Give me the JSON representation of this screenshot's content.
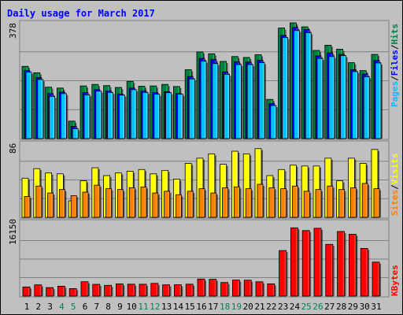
{
  "chart_data": [
    {
      "type": "bar",
      "title": "Daily usage for March 2017",
      "panel": "top",
      "ylabel_parts": [
        "Pages",
        "/",
        "Files",
        "/",
        "Hits"
      ],
      "ylim": [
        0,
        378
      ],
      "y_tick_label": "378",
      "categories": [
        "1",
        "2",
        "3",
        "4",
        "5",
        "6",
        "7",
        "8",
        "9",
        "10",
        "11",
        "12",
        "13",
        "14",
        "15",
        "16",
        "17",
        "18",
        "19",
        "20",
        "21",
        "22",
        "23",
        "24",
        "25",
        "26",
        "27",
        "28",
        "29",
        "30",
        "31"
      ],
      "weekend_days": [
        "4",
        "5",
        "11",
        "12",
        "18",
        "19",
        "25",
        "26"
      ],
      "series": [
        {
          "name": "Hits",
          "values": [
            236,
            215,
            168,
            165,
            57,
            172,
            177,
            173,
            167,
            187,
            171,
            172,
            177,
            170,
            225,
            283,
            277,
            252,
            268,
            265,
            274,
            128,
            361,
            378,
            365,
            288,
            305,
            292,
            248,
            222,
            275
          ]
        },
        {
          "name": "Files",
          "values": [
            222,
            199,
            147,
            152,
            40,
            150,
            160,
            155,
            145,
            165,
            155,
            150,
            153,
            147,
            203,
            262,
            258,
            218,
            251,
            250,
            256,
            114,
            337,
            363,
            356,
            270,
            280,
            275,
            225,
            211,
            255
          ]
        },
        {
          "name": "Pages",
          "values": [
            217,
            193,
            138,
            147,
            32,
            143,
            155,
            151,
            142,
            160,
            151,
            145,
            150,
            145,
            195,
            253,
            245,
            210,
            242,
            242,
            248,
            108,
            330,
            353,
            346,
            262,
            268,
            271,
            219,
            202,
            247
          ]
        }
      ]
    },
    {
      "type": "bar",
      "panel": "middle",
      "ylabel_parts": [
        "Sites",
        "/",
        "Visits"
      ],
      "ylim": [
        0,
        86
      ],
      "y_tick_label": "86",
      "categories": [
        "1",
        "2",
        "3",
        "4",
        "5",
        "6",
        "7",
        "8",
        "9",
        "10",
        "11",
        "12",
        "13",
        "14",
        "15",
        "16",
        "17",
        "18",
        "19",
        "20",
        "21",
        "22",
        "23",
        "24",
        "25",
        "26",
        "27",
        "28",
        "29",
        "30",
        "31"
      ],
      "series": [
        {
          "name": "Visits",
          "values": [
            45,
            56,
            51,
            50,
            19,
            42,
            57,
            48,
            51,
            53,
            55,
            50,
            54,
            44,
            62,
            68,
            73,
            61,
            76,
            73,
            79,
            48,
            55,
            60,
            59,
            59,
            68,
            42,
            68,
            62,
            78
          ]
        },
        {
          "name": "Sites",
          "values": [
            24,
            36,
            28,
            32,
            25,
            29,
            37,
            33,
            32,
            34,
            35,
            28,
            30,
            26,
            30,
            33,
            28,
            34,
            35,
            33,
            38,
            34,
            33,
            36,
            30,
            32,
            36,
            32,
            34,
            39,
            33
          ]
        }
      ]
    },
    {
      "type": "bar",
      "panel": "bottom",
      "ylabel": "KBytes",
      "ylim": [
        0,
        16150
      ],
      "y_tick_label": "16150",
      "categories": [
        "1",
        "2",
        "3",
        "4",
        "5",
        "6",
        "7",
        "8",
        "9",
        "10",
        "11",
        "12",
        "13",
        "14",
        "15",
        "16",
        "17",
        "18",
        "19",
        "20",
        "21",
        "22",
        "23",
        "24",
        "25",
        "26",
        "27",
        "28",
        "29",
        "30",
        "31"
      ],
      "series": [
        {
          "name": "KBytes",
          "values": [
            2000,
            2460,
            1860,
            2170,
            1640,
            3140,
            2570,
            2360,
            2660,
            2600,
            2590,
            2780,
            2460,
            2470,
            2600,
            3730,
            3670,
            2970,
            3500,
            3470,
            3130,
            2680,
            9940,
            14900,
            14300,
            14800,
            11300,
            14100,
            13500,
            10400,
            7420
          ]
        }
      ]
    }
  ],
  "colors": {
    "background": "#c0c0c0",
    "plot_background": "#c0c0c0",
    "title": "#0000ff",
    "hits": "#008040",
    "files": "#0000ff",
    "pages": "#00c0ff",
    "visits": "#ffff00",
    "sites": "#ff8000",
    "kbytes": "#ff0000",
    "gridline": "#808080",
    "weekday_label": "#000000",
    "weekend_label": "#00805c",
    "separator": "#808080",
    "axis_label_text": "#000000"
  }
}
